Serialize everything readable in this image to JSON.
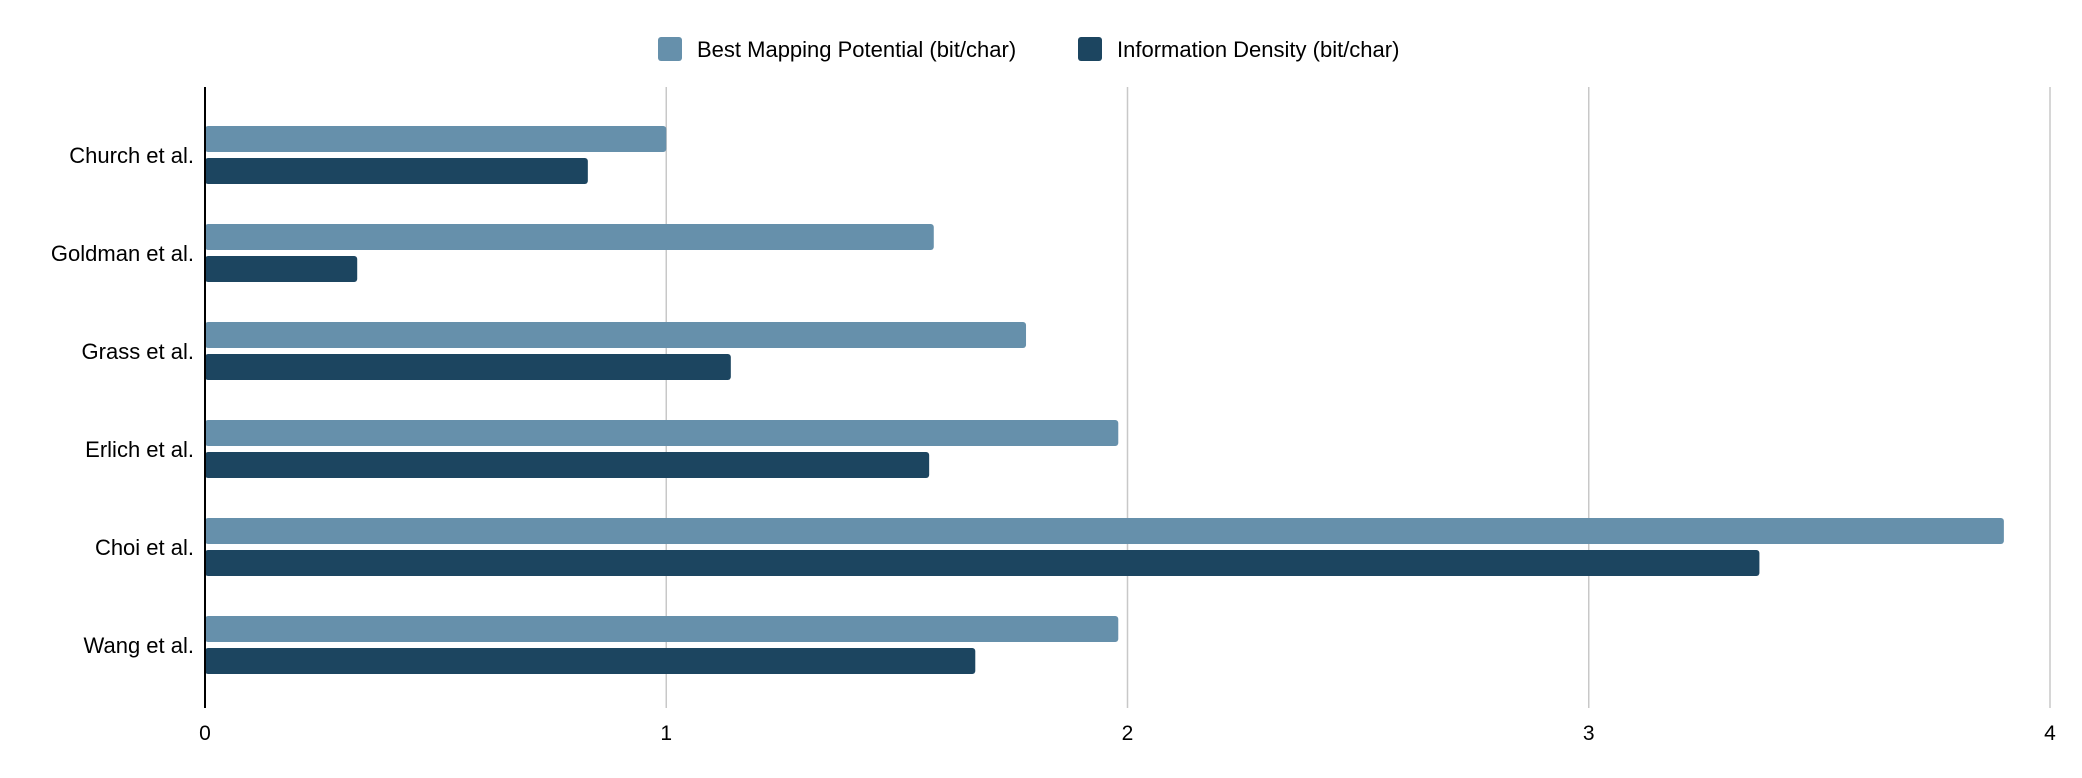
{
  "chart_data": {
    "type": "bar",
    "orientation": "horizontal",
    "categories": [
      "Church et al.",
      "Goldman et al.",
      "Grass et al.",
      "Erlich et al.",
      "Choi et al.",
      "Wang et al."
    ],
    "series": [
      {
        "name": "Best Mapping Potential (bit/char)",
        "color": "#6690ab",
        "values": [
          1.0,
          1.58,
          1.78,
          1.98,
          3.9,
          1.98
        ]
      },
      {
        "name": "Information Density (bit/char)",
        "color": "#1c4560",
        "values": [
          0.83,
          0.33,
          1.14,
          1.57,
          3.37,
          1.67
        ]
      }
    ],
    "xlim": [
      0,
      4
    ],
    "xticks": [
      "0",
      "1",
      "2",
      "3",
      "4"
    ],
    "title": "",
    "xlabel": "",
    "ylabel": "",
    "grid": true,
    "legend_position": "top-center"
  }
}
